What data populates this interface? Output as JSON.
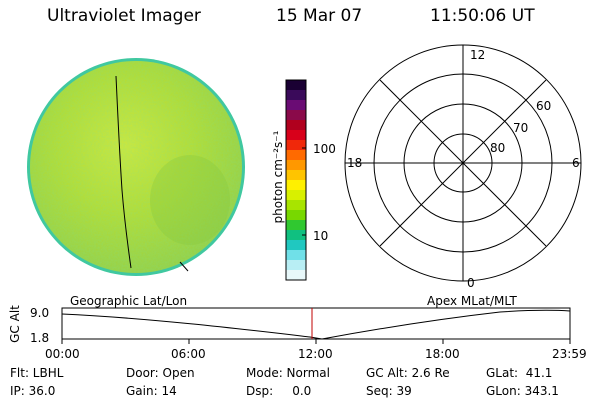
{
  "header": {
    "title": "Ultraviolet Imager",
    "date": "15 Mar 07",
    "time": "11:50:06 UT"
  },
  "colorbar": {
    "unit_label": "photon cm⁻²s⁻¹",
    "ticks": [
      "100",
      "10"
    ],
    "colors": [
      "#1a0033",
      "#3a0a5a",
      "#6a0c74",
      "#8a0a4a",
      "#b0001e",
      "#d8001a",
      "#f0280a",
      "#ff6a00",
      "#ff9800",
      "#ffc400",
      "#fff000",
      "#d8f000",
      "#a8e400",
      "#78d800",
      "#30c830",
      "#10c080",
      "#20c8c0",
      "#70e0e8",
      "#b8eef4",
      "#e8f8fa"
    ]
  },
  "polar": {
    "labels": {
      "top": "12",
      "bottom": "0",
      "left": "18",
      "right": "6"
    },
    "lat_labels": [
      "60",
      "70",
      "80"
    ]
  },
  "timeline": {
    "left_label": "Geographic Lat/Lon",
    "right_label": "Apex MLat/MLT",
    "axis_label": "GC Alt",
    "y_top": "9.0",
    "y_bottom": "1.8",
    "time_ticks": [
      "00:00",
      "06:00",
      "12:00",
      "18:00",
      "23:59"
    ]
  },
  "info": {
    "filter_label": "Flt: LBHL",
    "ip_label": "IP: 36.0",
    "door_label": "Door: Open",
    "gain_label": "Gain: 14",
    "mode_label": "Mode: Normal",
    "dsp_label": "Dsp:     0.0",
    "gcalt_label": "GC Alt: 2.6 Re",
    "seq_label": "Seq: 39",
    "glat_label": "GLat:  41.1",
    "glon_label": "GLon: 343.1"
  },
  "colors": {
    "disk": "#b8e030",
    "disk_edge": "#40c8a0",
    "current_time_marker": "#c00000"
  }
}
